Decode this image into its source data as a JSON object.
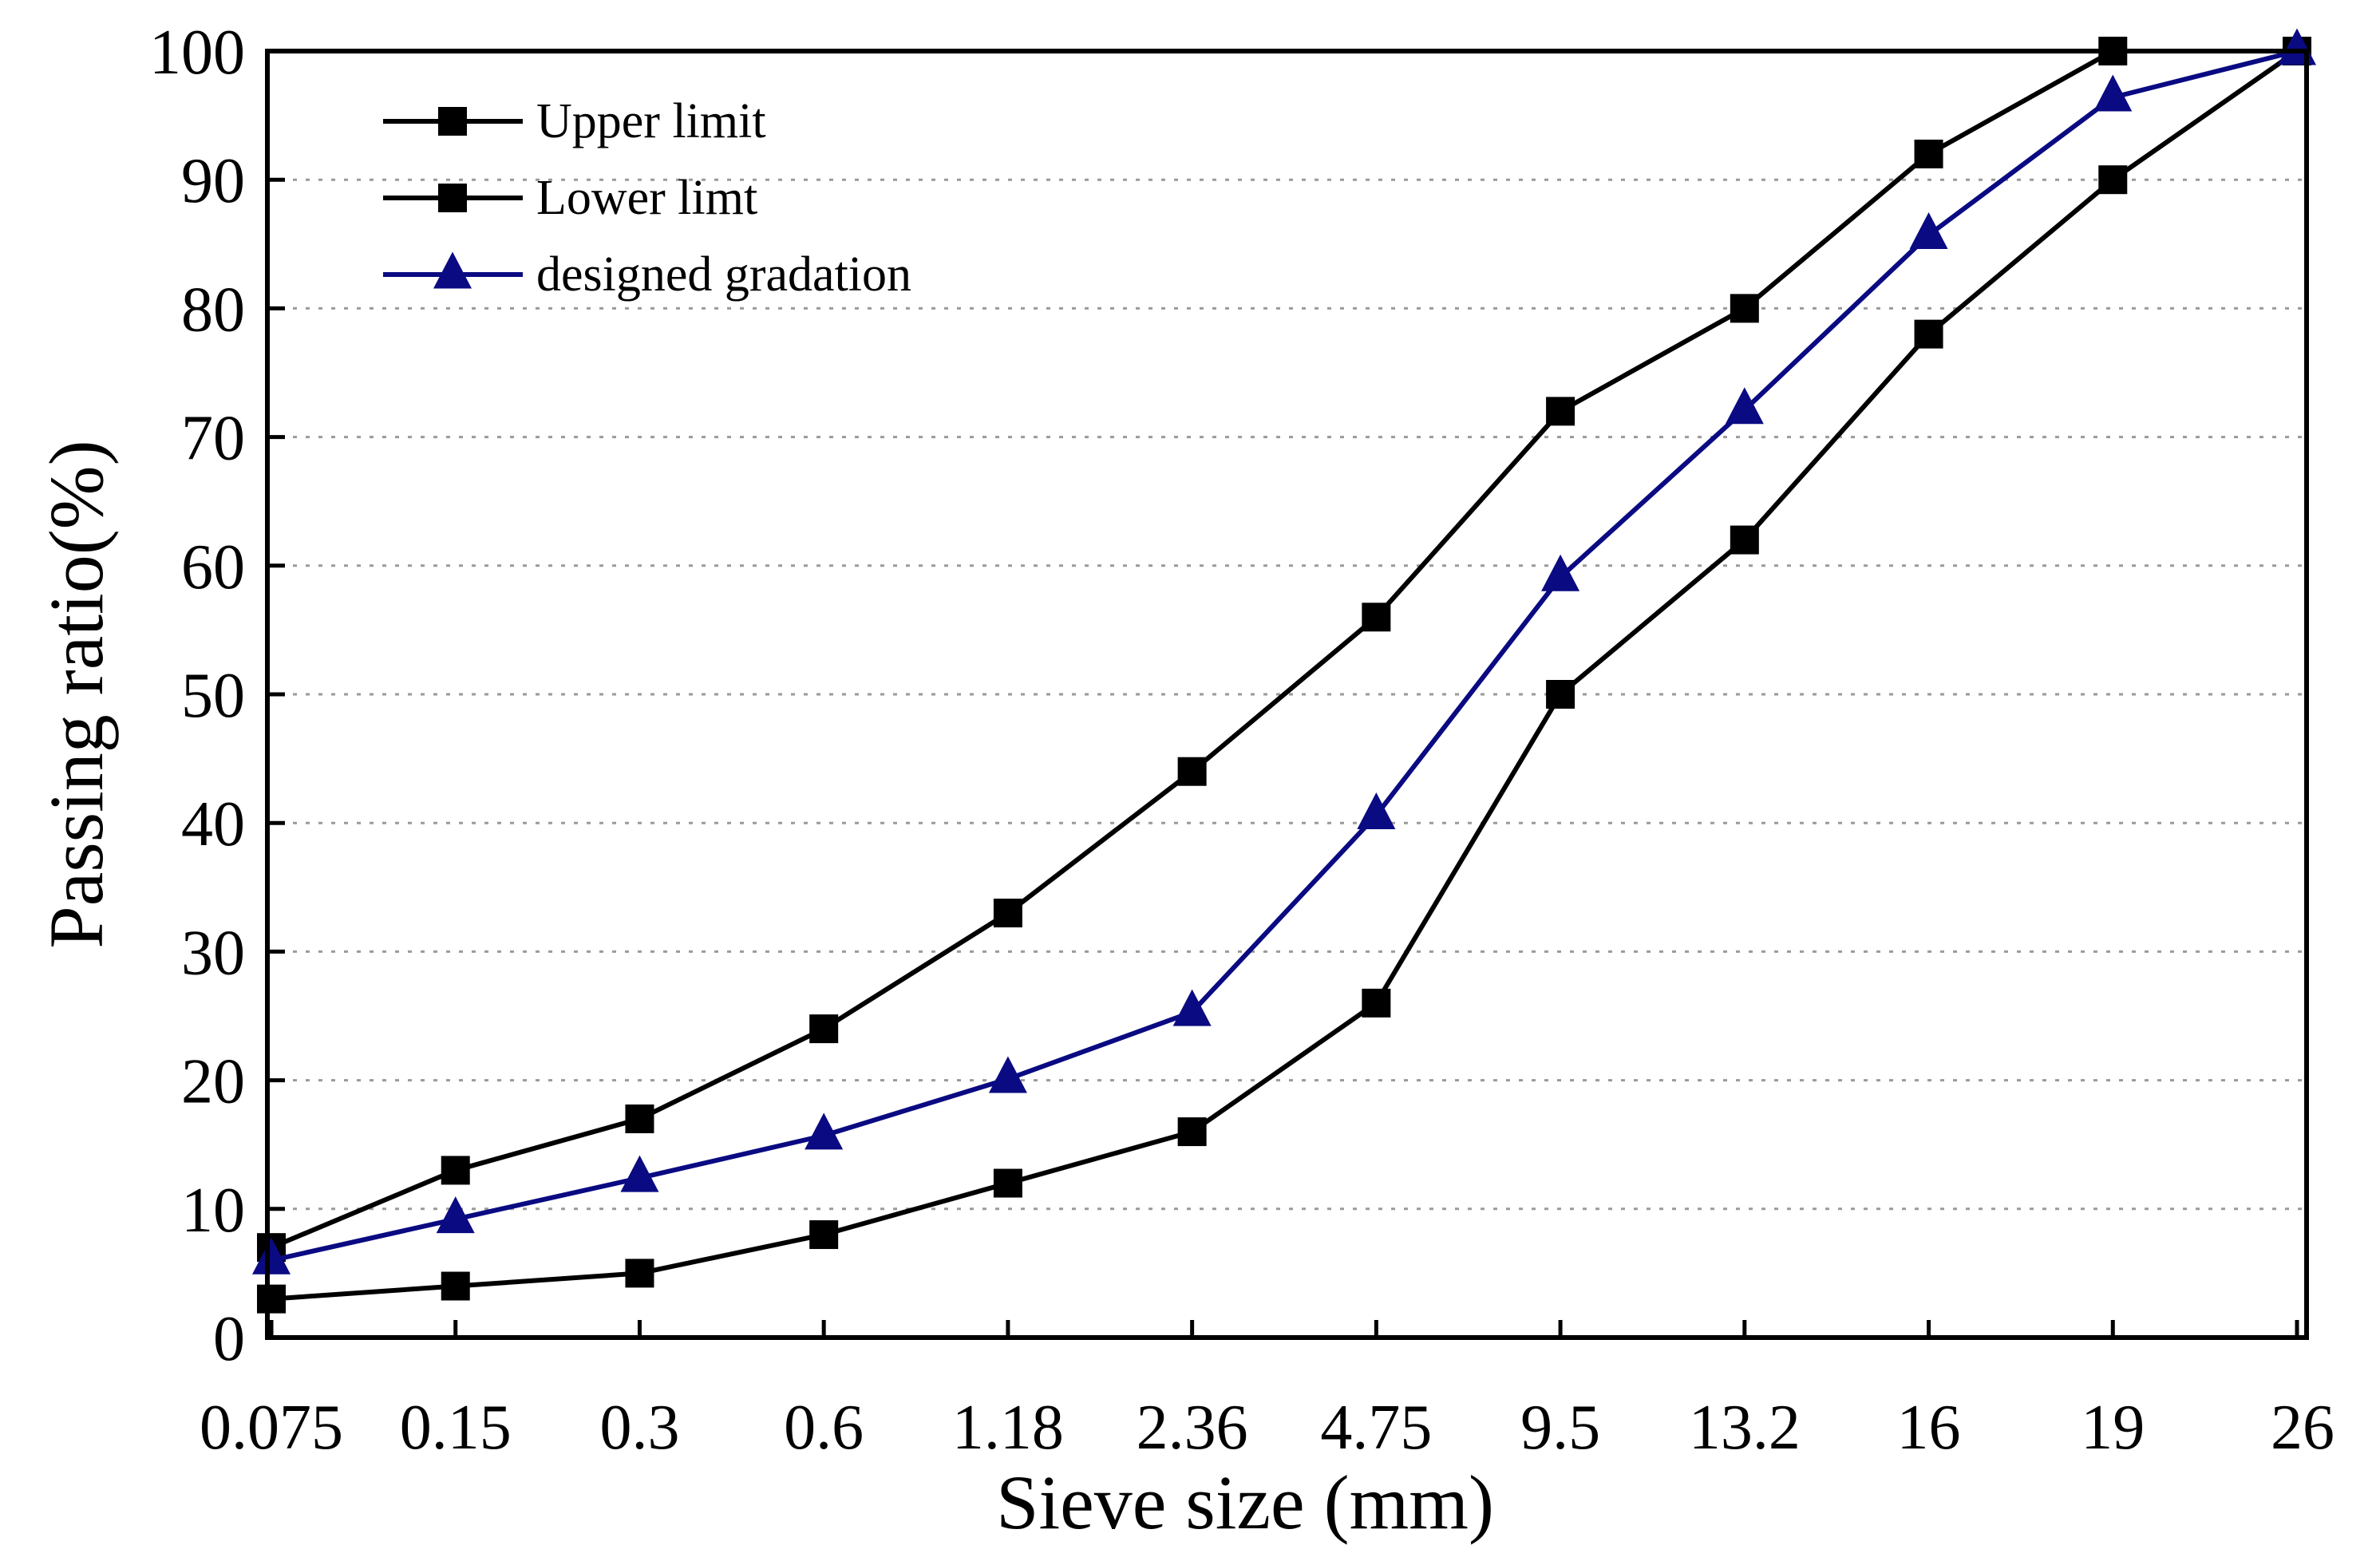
{
  "chart_data": {
    "type": "line",
    "xlabel": "Sieve size (mm)",
    "ylabel": "Passing ratio(%)",
    "categories": [
      "0.075",
      "0.15",
      "0.3",
      "0.6",
      "1.18",
      "2.36",
      "4.75",
      "9.5",
      "13.2",
      "16",
      "19",
      "26"
    ],
    "ylim": [
      0,
      100
    ],
    "yticks": [
      "0",
      "10",
      "20",
      "30",
      "40",
      "50",
      "60",
      "70",
      "80",
      "90",
      "100"
    ],
    "grid": "horizontal dotted",
    "legend_position": "top-left",
    "series": [
      {
        "name": "Upper limit",
        "color": "#000000",
        "marker": "square",
        "values": [
          7,
          13,
          17,
          24,
          33,
          44,
          56,
          72,
          80,
          92,
          100,
          100
        ]
      },
      {
        "name": "Lower limt",
        "color": "#000000",
        "marker": "square",
        "values": [
          3,
          4,
          5,
          8,
          12,
          16,
          26,
          50,
          62,
          78,
          90,
          100
        ]
      },
      {
        "name": "designed gradation",
        "color": "#0a0a82",
        "marker": "triangle",
        "values": [
          6,
          9.2,
          12.4,
          15.7,
          20.1,
          25.3,
          40.6,
          59.1,
          72.1,
          85.7,
          96.4,
          100
        ]
      }
    ]
  }
}
